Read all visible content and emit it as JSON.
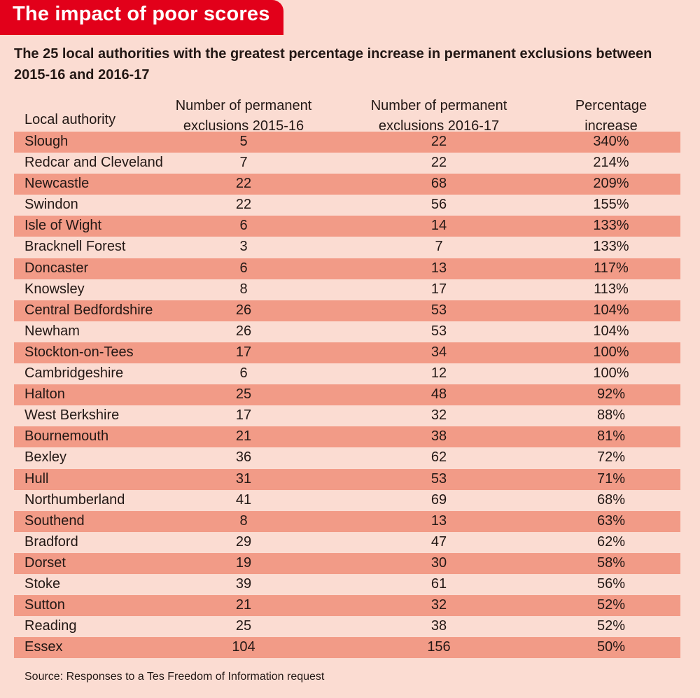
{
  "title": "The impact of poor scores",
  "subtitle": "The 25 local authorities with the greatest percentage increase in permanent exclusions between 2015-16 and 2016-17",
  "source": "Source: Responses to a Tes Freedom of Information request",
  "colors": {
    "title_bar": "#e2001a",
    "background": "#fbdcd2",
    "stripe": "#f29b87",
    "text": "#231815"
  },
  "chart_data": {
    "type": "table",
    "title": "The impact of poor scores",
    "subtitle": "The 25 local authorities with the greatest percentage increase in permanent exclusions between 2015-16 and 2016-17",
    "columns": [
      "Local authority",
      "Number of permanent exclusions 2015-16",
      "Number of permanent exclusions 2016-17",
      "Percentage increase"
    ],
    "header_lines": [
      [
        "Local authority"
      ],
      [
        "Number of permanent",
        "exclusions 2015-16"
      ],
      [
        "Number of permanent",
        "exclusions 2016-17"
      ],
      [
        "Percentage",
        "increase"
      ]
    ],
    "rows": [
      [
        "Slough",
        "5",
        "22",
        "340%"
      ],
      [
        "Redcar and Cleveland",
        "7",
        "22",
        "214%"
      ],
      [
        "Newcastle",
        "22",
        "68",
        "209%"
      ],
      [
        "Swindon",
        "22",
        "56",
        "155%"
      ],
      [
        "Isle of Wight",
        "6",
        "14",
        "133%"
      ],
      [
        "Bracknell Forest",
        "3",
        "7",
        "133%"
      ],
      [
        "Doncaster",
        "6",
        "13",
        "117%"
      ],
      [
        "Knowsley",
        "8",
        "17",
        "113%"
      ],
      [
        "Central Bedfordshire",
        "26",
        "53",
        "104%"
      ],
      [
        "Newham",
        "26",
        "53",
        "104%"
      ],
      [
        "Stockton-on-Tees",
        "17",
        "34",
        "100%"
      ],
      [
        "Cambridgeshire",
        "6",
        "12",
        "100%"
      ],
      [
        "Halton",
        "25",
        "48",
        "92%"
      ],
      [
        "West Berkshire",
        "17",
        "32",
        "88%"
      ],
      [
        "Bournemouth",
        "21",
        "38",
        "81%"
      ],
      [
        "Bexley",
        "36",
        "62",
        "72%"
      ],
      [
        "Hull",
        "31",
        "53",
        "71%"
      ],
      [
        "Northumberland",
        "41",
        "69",
        "68%"
      ],
      [
        "Southend",
        "8",
        "13",
        "63%"
      ],
      [
        "Bradford",
        "29",
        "47",
        "62%"
      ],
      [
        "Dorset",
        "19",
        "30",
        "58%"
      ],
      [
        "Stoke",
        "39",
        "61",
        "56%"
      ],
      [
        "Sutton",
        "21",
        "32",
        "52%"
      ],
      [
        "Reading",
        "25",
        "38",
        "52%"
      ],
      [
        "Essex",
        "104",
        "156",
        "50%"
      ]
    ],
    "source": "Source: Responses to a Tes Freedom of Information request"
  }
}
